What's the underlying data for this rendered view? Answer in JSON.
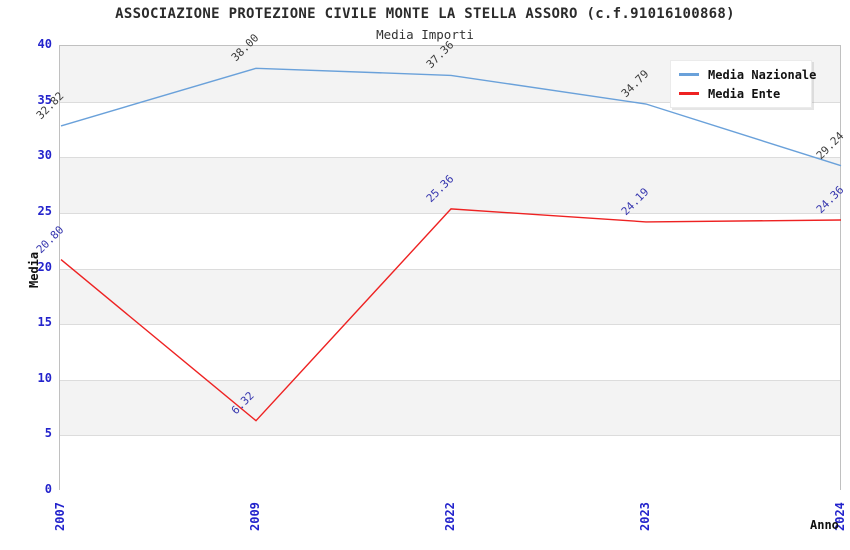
{
  "chart_data": {
    "type": "line",
    "title": "ASSOCIAZIONE PROTEZIONE CIVILE MONTE LA STELLA ASSORO (c.f.91016100868)",
    "subtitle": "Media Importi",
    "xlabel": "Anno",
    "ylabel": "Media",
    "categories": [
      "2007",
      "2009",
      "2022",
      "2023",
      "2024"
    ],
    "series": [
      {
        "name": "Media Nazionale",
        "values": [
          32.82,
          38.0,
          37.36,
          34.79,
          29.24
        ],
        "labels": [
          "32.82",
          "38.00",
          "37.36",
          "34.79",
          "29.24"
        ],
        "line_color": "#6aa1da",
        "label_color": "#3d3d3d"
      },
      {
        "name": "Media Ente",
        "values": [
          20.8,
          6.32,
          25.36,
          24.19,
          24.36
        ],
        "labels": [
          "20.80",
          "6.32",
          "25.36",
          "24.19",
          "24.36"
        ],
        "line_color": "#ee2222",
        "label_color": "#3636ae"
      }
    ],
    "ylim": [
      0,
      40
    ],
    "ytick_step": 5,
    "yticks": [
      "0",
      "5",
      "10",
      "15",
      "20",
      "25",
      "30",
      "35",
      "40"
    ],
    "grid": true,
    "legend_position": "top-right",
    "band_colors": [
      "#f3f3f3",
      "#ffffff"
    ],
    "grid_color": "#dcdcdc",
    "tick_label_color": "#2323cc"
  }
}
